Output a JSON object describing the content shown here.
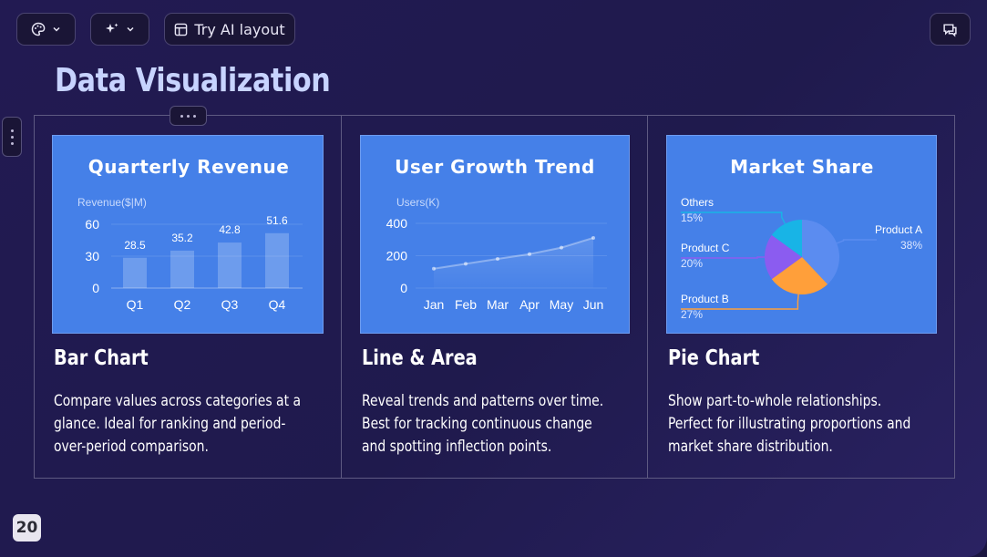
{
  "toolbar": {
    "theme_icon": "palette-icon",
    "magic_icon": "sparkle-icon",
    "ai_layout_label": "Try AI layout",
    "comment_icon": "comment-icon"
  },
  "slide": {
    "title": "Data Visualization",
    "page_number": "20"
  },
  "cards": [
    {
      "heading": "Bar Chart",
      "description": "Compare values across categories at a glance. Ideal for ranking and period-over-period comparison."
    },
    {
      "heading": "Line & Area",
      "description": "Reveal trends and patterns over time. Best for tracking continuous change and spotting inflection points."
    },
    {
      "heading": "Pie Chart",
      "description": "Show part-to-whole relationships. Perfect for illustrating proportions and market share distribution."
    }
  ],
  "colors": {
    "chart_bg": "#4580e8",
    "pie_a": "#5b8cf0",
    "pie_b": "#ff9f3a",
    "pie_c": "#8b5cf0",
    "pie_others": "#18b4e6"
  },
  "chart_data": [
    {
      "type": "bar",
      "title": "Quarterly Revenue",
      "ylabel": "Revenue($|M)",
      "categories": [
        "Q1",
        "Q2",
        "Q3",
        "Q4"
      ],
      "values": [
        28.5,
        35.2,
        42.8,
        51.6
      ],
      "value_labels": [
        "28.5",
        "35.2",
        "42.8",
        "51.6"
      ],
      "yticks": [
        "60",
        "30",
        "0"
      ],
      "ylim": [
        0,
        60
      ]
    },
    {
      "type": "area",
      "title": "User Growth Trend",
      "ylabel": "Users(K)",
      "categories": [
        "Jan",
        "Feb",
        "Mar",
        "Apr",
        "May",
        "Jun"
      ],
      "values": [
        120,
        150,
        180,
        210,
        250,
        310
      ],
      "yticks": [
        "400",
        "200",
        "0"
      ],
      "ylim": [
        0,
        400
      ]
    },
    {
      "type": "pie",
      "title": "Market Share",
      "slices": [
        {
          "name": "Product A",
          "label": "38%",
          "value": 38
        },
        {
          "name": "Product B",
          "label": "27%",
          "value": 27
        },
        {
          "name": "Product C",
          "label": "20%",
          "value": 20
        },
        {
          "name": "Others",
          "label": "15%",
          "value": 15
        }
      ]
    }
  ]
}
